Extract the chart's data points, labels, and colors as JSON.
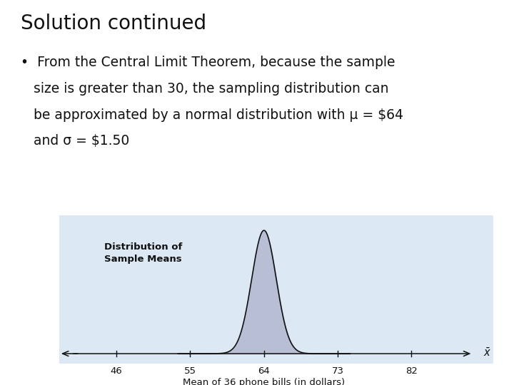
{
  "title": "Solution continued",
  "line1": "•  From the Central Limit Theorem, because the sample",
  "line2": "   size is greater than 30, the sampling distribution can",
  "line3": "   be approximated by a normal distribution with μ = $64",
  "line4": "   and σ = $1.50",
  "chart_title_line1": "Distribution of",
  "chart_title_line2": "Sample Means",
  "xlabel": "Mean of 36 phone bills (in dollars)",
  "xticks": [
    46,
    55,
    64,
    73,
    82
  ],
  "mu": 64,
  "sigma": 1.5,
  "bg_color": "#ffffff",
  "chart_bg_color": "#dce9f5",
  "fill_color": "#b8bfd4",
  "curve_color": "#111111",
  "axis_color": "#111111",
  "title_fontsize": 20,
  "body_fontsize": 13.5,
  "chart_label_fontsize": 9.5
}
